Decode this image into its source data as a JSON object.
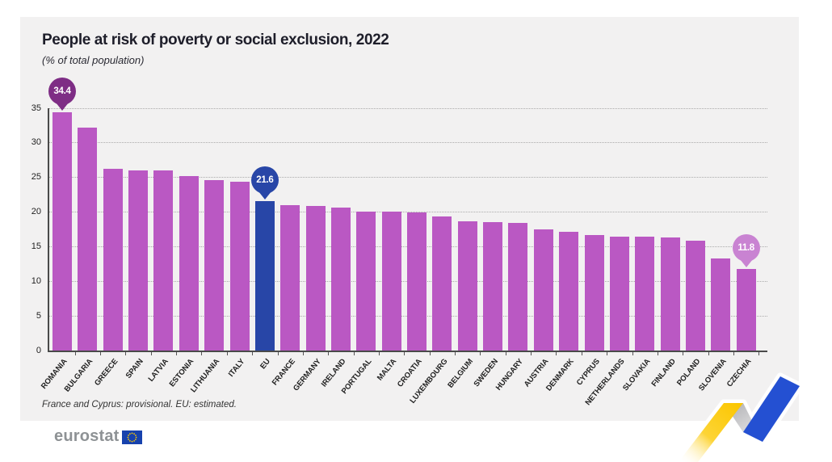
{
  "chart_data": {
    "type": "bar",
    "title": "People at risk of poverty or social exclusion, 2022",
    "subtitle": "(% of total population)",
    "unit": "% of total population",
    "categories": [
      "ROMANIA",
      "BULGARIA",
      "GREECE",
      "SPAIN",
      "LATVIA",
      "ESTONIA",
      "LITHUANIA",
      "ITALY",
      "EU",
      "FRANCE",
      "GERMANY",
      "IRELAND",
      "PORTUGAL",
      "MALTA",
      "CROATIA",
      "LUXEMBOURG",
      "BELGIUM",
      "SWEDEN",
      "HUNGARY",
      "AUSTRIA",
      "DENMARK",
      "CYPRUS",
      "NETHERLANDS",
      "SLOVAKIA",
      "FINLAND",
      "POLAND",
      "SLOVENIA",
      "CZECHIA"
    ],
    "values": [
      34.4,
      32.2,
      26.3,
      26.0,
      26.0,
      25.2,
      24.6,
      24.4,
      21.6,
      21.0,
      20.9,
      20.7,
      20.1,
      20.1,
      19.9,
      19.4,
      18.7,
      18.6,
      18.4,
      17.5,
      17.1,
      16.7,
      16.5,
      16.5,
      16.3,
      15.9,
      13.3,
      11.8
    ],
    "highlighted_category": "EU",
    "ylim": [
      0,
      35
    ],
    "yticks": [
      0,
      5,
      10,
      15,
      20,
      25,
      30,
      35
    ],
    "grid": "horizontal-dotted",
    "legend_position": "none",
    "callouts": [
      {
        "category": "ROMANIA",
        "label": "34.4",
        "color": "#7e2d85"
      },
      {
        "category": "EU",
        "label": "21.6",
        "color": "#2846a7"
      },
      {
        "category": "CZECHIA",
        "label": "11.8",
        "color": "#c983d2"
      }
    ],
    "colors": {
      "bar": "#ba58c3",
      "highlight_bar": "#2846a7",
      "plot_background": "#f2f1f1"
    }
  },
  "footnote": {
    "text": "France and Cyprus: provisional. EU: estimated."
  },
  "footer": {
    "logo_text": "eurostat",
    "flag_icon": "eu-flag-icon"
  },
  "decoration": {
    "name": "yellow-blue-zigzag-ribbon",
    "colors": {
      "yellow": "#fbc600",
      "fold_gray": "#bcbcbf",
      "blue": "#2450d2",
      "outline": "#ffffff"
    }
  }
}
